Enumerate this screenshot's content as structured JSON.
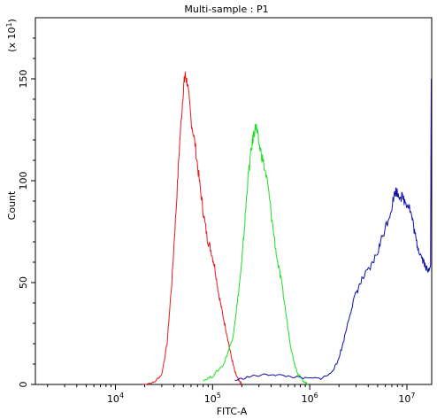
{
  "chart_data": {
    "type": "line",
    "title": "Multi-sample : P1",
    "xlabel": "FITC-A",
    "ylabel": "Count",
    "y_multiplier_label": "(x 10^1)",
    "x_scale": "log",
    "xlim": [
      1500,
      18000000
    ],
    "ylim": [
      0,
      180
    ],
    "grid": false,
    "legend": "none",
    "x_ticks": [
      {
        "value": 10000,
        "base": "10",
        "exp": "4"
      },
      {
        "value": 100000,
        "base": "10",
        "exp": "5"
      },
      {
        "value": 1000000,
        "base": "10",
        "exp": "6"
      },
      {
        "value": 10000000,
        "base": "10",
        "exp": "7"
      }
    ],
    "y_ticks": [
      {
        "value": 0,
        "label": "0"
      },
      {
        "value": 50,
        "label": "50"
      },
      {
        "value": 100,
        "label": "100"
      },
      {
        "value": 150,
        "label": "150"
      }
    ],
    "series": [
      {
        "color": "#e41a1c",
        "x": [
          19000,
          25000,
          30000,
          34000,
          38000,
          42000,
          46000,
          50000,
          52000,
          55000,
          60000,
          66000,
          73000,
          80000,
          88000,
          96000,
          105000,
          115000,
          125000,
          140000,
          155000,
          170000,
          185000,
          200000
        ],
        "y": [
          0,
          1,
          5,
          20,
          50,
          85,
          120,
          145,
          152,
          148,
          130,
          118,
          100,
          85,
          72,
          66,
          58,
          45,
          36,
          25,
          14,
          6,
          2,
          0
        ]
      },
      {
        "color": "#22dd22",
        "x": [
          80000,
          100000,
          130000,
          160000,
          180000,
          200000,
          215000,
          230000,
          250000,
          265000,
          280000,
          300000,
          330000,
          370000,
          410000,
          460000,
          520000,
          580000,
          640000,
          700000,
          760000,
          850000,
          950000
        ],
        "y": [
          2,
          4,
          10,
          22,
          40,
          60,
          80,
          100,
          115,
          123,
          127,
          118,
          110,
          98,
          80,
          62,
          48,
          32,
          18,
          10,
          5,
          2,
          0
        ]
      },
      {
        "color": "#1010aa",
        "x": [
          170000,
          250000,
          400000,
          600000,
          900000,
          1300000,
          1600000,
          1900000,
          2200000,
          2600000,
          3000000,
          3500000,
          4200000,
          5000000,
          5800000,
          6800000,
          7600000,
          8500000,
          9500000,
          10500000,
          11500000,
          12500000,
          13500000,
          15000000,
          16500000,
          17500000,
          17800000
        ],
        "y": [
          2,
          4,
          5,
          4,
          3,
          3,
          5,
          10,
          20,
          35,
          45,
          52,
          57,
          65,
          75,
          85,
          95,
          93,
          90,
          88,
          80,
          70,
          65,
          60,
          55,
          60,
          150
        ]
      }
    ]
  }
}
